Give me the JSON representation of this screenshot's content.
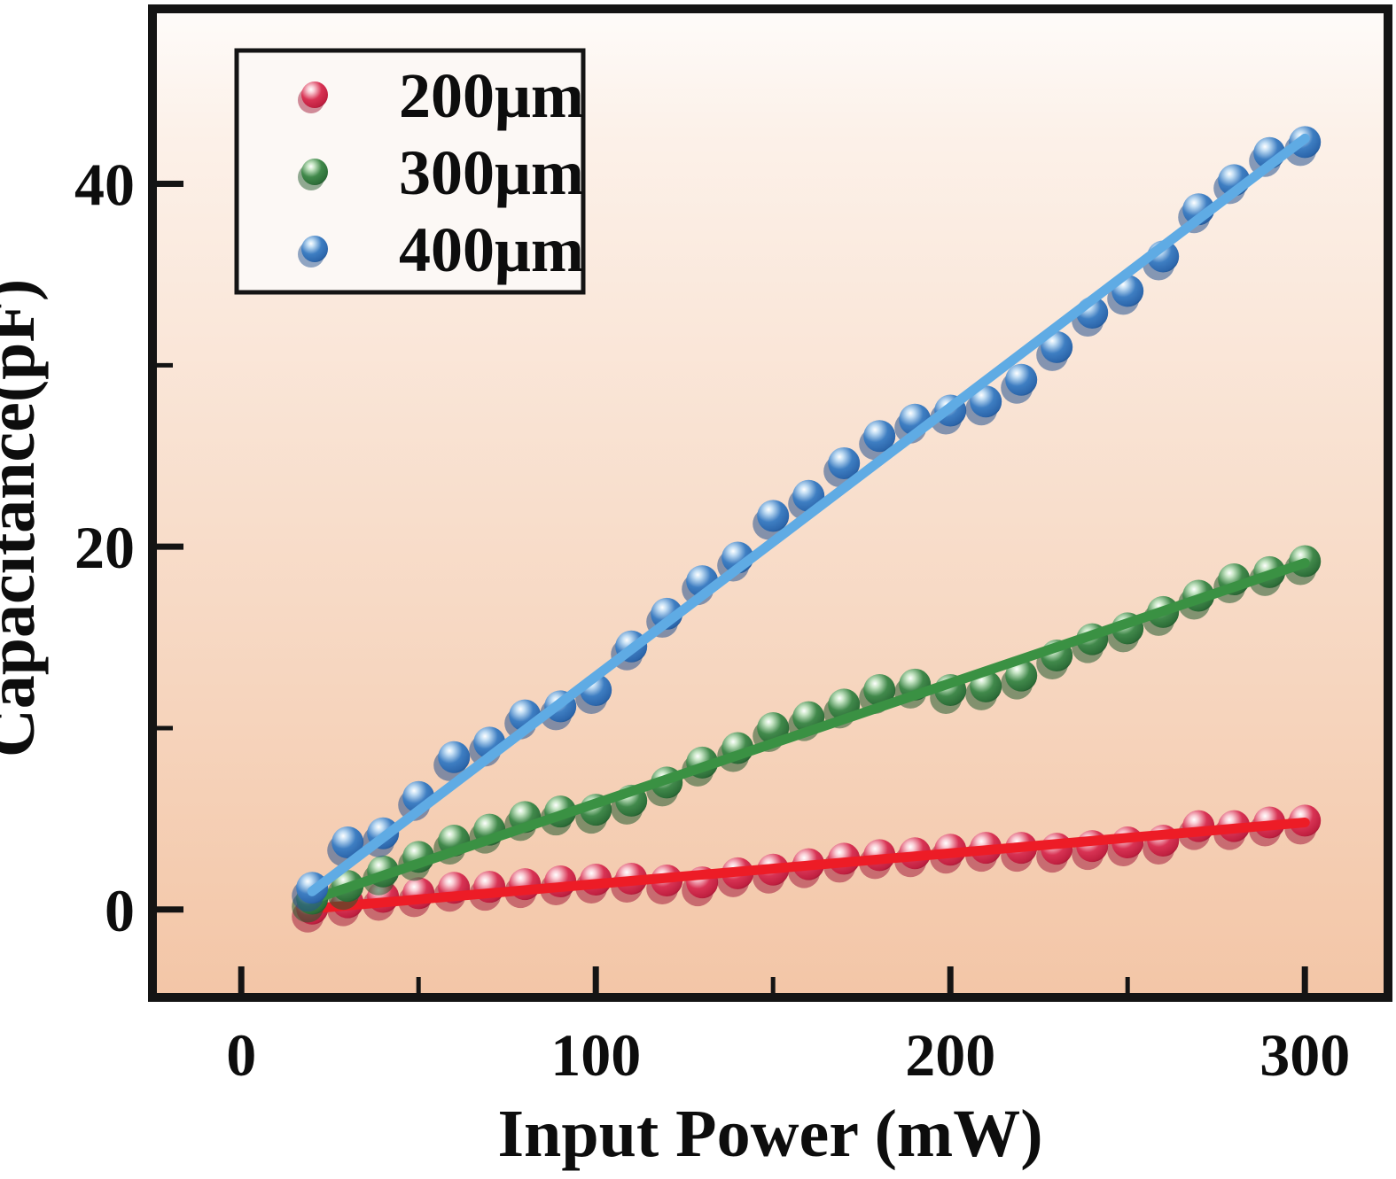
{
  "figure": {
    "frame_color": "#141414",
    "text_color": "#0d0d0d",
    "outer_background": "#ffffff"
  },
  "axes": {
    "x": {
      "label": "Input Power (mW)",
      "major_tick_labels": [
        "0",
        "100",
        "200",
        "300"
      ]
    },
    "y": {
      "label": "Capacitance(pF)",
      "major_tick_labels": [
        "0",
        "20",
        "40"
      ]
    }
  },
  "legend": {
    "items": [
      "200μm",
      "300μm",
      "400μm"
    ]
  },
  "chart_data": {
    "type": "scatter",
    "title": "",
    "xlabel": "Input Power (mW)",
    "ylabel": "Capacitance(pF)",
    "xlim": [
      -23.8,
      322.2
    ],
    "ylim": [
      -4.6,
      49.4
    ],
    "x_major_ticks": [
      0,
      100,
      200,
      300
    ],
    "x_minor_ticks": [
      50,
      150,
      250
    ],
    "y_major_ticks": [
      0,
      20,
      40
    ],
    "y_minor_ticks": [
      10,
      30
    ],
    "grid": false,
    "legend_position": "top-left",
    "background": {
      "top": "#fefbf9",
      "upper": "#fcf1e9",
      "bottom": "#f3c6a7"
    },
    "x": [
      20,
      30,
      40,
      50,
      60,
      70,
      80,
      90,
      100,
      110,
      120,
      130,
      140,
      150,
      160,
      170,
      180,
      190,
      200,
      210,
      220,
      230,
      240,
      250,
      260,
      270,
      280,
      290,
      300
    ],
    "series": [
      {
        "name": "200μm",
        "marker_color": "#c02040",
        "line_color": "#ed1c26",
        "marker_shades": {
          "highlight": "#f9ccd4",
          "mid": "#d83354",
          "base": "#c02040",
          "dark": "#8f1530",
          "shadow": "#a41e3c"
        },
        "values": [
          0.05,
          0.4,
          0.7,
          0.9,
          1.2,
          1.25,
          1.4,
          1.55,
          1.65,
          1.7,
          1.6,
          1.5,
          2.0,
          2.2,
          2.5,
          2.8,
          3.0,
          3.1,
          3.3,
          3.4,
          3.4,
          3.35,
          3.5,
          3.7,
          3.8,
          4.6,
          4.6,
          4.8,
          4.9
        ],
        "fit_line": {
          "x": [
            20,
            300
          ],
          "y": [
            0.05,
            4.8
          ]
        }
      },
      {
        "name": "300μm",
        "marker_color": "#2d6e38",
        "line_color": "#3a9143",
        "marker_shades": {
          "highlight": "#c8e6c6",
          "mid": "#41894b",
          "base": "#2d6e38",
          "dark": "#1b4726",
          "shadow": "#235a2e"
        },
        "values": [
          0.6,
          1.3,
          2.1,
          2.9,
          3.8,
          4.4,
          5.1,
          5.4,
          5.5,
          6.0,
          7.0,
          8.1,
          8.9,
          10.0,
          10.6,
          11.3,
          12.1,
          12.4,
          12.1,
          12.3,
          12.9,
          14.0,
          14.9,
          15.5,
          16.4,
          17.3,
          18.2,
          18.6,
          19.2
        ],
        "fit_line": {
          "x": [
            20,
            300
          ],
          "y": [
            0.55,
            19.1
          ]
        }
      },
      {
        "name": "400μm",
        "marker_color": "#2c66ab",
        "line_color": "#5fabe4",
        "marker_shades": {
          "highlight": "#c3def4",
          "mid": "#3e7ec2",
          "base": "#2c66ab",
          "dark": "#1b4a82",
          "shadow": "#245290"
        },
        "values": [
          1.2,
          3.7,
          4.2,
          6.2,
          8.4,
          9.2,
          10.7,
          11.2,
          12.1,
          14.5,
          16.3,
          18.1,
          19.4,
          21.7,
          22.8,
          24.6,
          26.1,
          27.0,
          27.5,
          28.0,
          29.2,
          31.0,
          32.9,
          34.1,
          36.0,
          38.6,
          40.2,
          41.7,
          42.3
        ],
        "fit_line": {
          "x": [
            20,
            300
          ],
          "y": [
            1.0,
            42.5
          ]
        }
      }
    ]
  }
}
